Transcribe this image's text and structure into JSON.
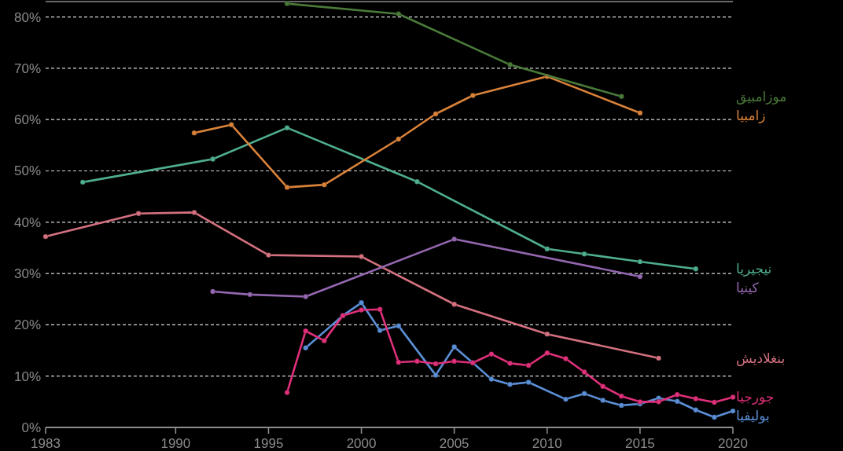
{
  "chart_data": {
    "type": "line",
    "xlim": [
      1983,
      2020
    ],
    "ylim": [
      0,
      83
    ],
    "xticks": [
      1983,
      1990,
      1995,
      2000,
      2005,
      2010,
      2015,
      2020
    ],
    "yticks": [
      {
        "value": 0,
        "label": "0%"
      },
      {
        "value": 10,
        "label": "10%"
      },
      {
        "value": 20,
        "label": "20%"
      },
      {
        "value": 30,
        "label": "30%"
      },
      {
        "value": 40,
        "label": "40%"
      },
      {
        "value": 50,
        "label": "50%"
      },
      {
        "value": 60,
        "label": "60%"
      },
      {
        "value": 70,
        "label": "70%"
      },
      {
        "value": 80,
        "label": "80%"
      }
    ],
    "grid": "y",
    "marker": "circle",
    "line_style": "solid",
    "legend": false,
    "series": [
      {
        "name": "موزامبيق",
        "color": "#4a7a3a",
        "x": [
          1996,
          2002,
          2008,
          2014
        ],
        "values": [
          82.6,
          80.6,
          70.7,
          64.5
        ]
      },
      {
        "name": "زامبيا",
        "color": "#d9823a",
        "x": [
          1991,
          1993,
          1996,
          1998,
          2002,
          2004,
          2006,
          2010,
          2015
        ],
        "values": [
          57.4,
          59.0,
          46.8,
          47.3,
          56.2,
          61.1,
          64.7,
          68.4,
          61.3
        ]
      },
      {
        "name": "نيجيريا",
        "color": "#4fae8f",
        "x": [
          1985,
          1992,
          1996,
          2003,
          2010,
          2012,
          2015,
          2018
        ],
        "values": [
          47.8,
          52.3,
          58.4,
          47.9,
          34.8,
          33.8,
          32.3,
          30.9
        ]
      },
      {
        "name": "كينيا",
        "color": "#9467b0",
        "x": [
          1992,
          1994,
          1997,
          2005,
          2015
        ],
        "values": [
          26.5,
          25.9,
          25.5,
          36.7,
          29.4
        ]
      },
      {
        "name": "بنغلاديش",
        "color": "#d4717f",
        "x": [
          1983,
          1988,
          1991,
          1995,
          2000,
          2005,
          2010,
          2016
        ],
        "values": [
          37.2,
          41.7,
          41.9,
          33.6,
          33.3,
          24.0,
          18.2,
          13.5
        ]
      },
      {
        "name": "جورجيا",
        "color": "#e0307a",
        "x": [
          1996,
          1997,
          1998,
          1999,
          2000,
          2001,
          2002,
          2003,
          2004,
          2005,
          2006,
          2007,
          2008,
          2009,
          2010,
          2011,
          2012,
          2013,
          2014,
          2015,
          2016,
          2017,
          2018,
          2019,
          2020
        ],
        "values": [
          6.8,
          18.8,
          16.9,
          21.8,
          22.9,
          23.0,
          12.7,
          12.9,
          12.4,
          12.9,
          12.6,
          14.3,
          12.5,
          12.1,
          14.5,
          13.4,
          10.8,
          8.0,
          6.1,
          5.0,
          5.0,
          6.4,
          5.6,
          4.9,
          5.9
        ]
      },
      {
        "name": "بوليفيا",
        "color": "#5b8fd6",
        "x": [
          1997,
          1999,
          2000,
          2001,
          2002,
          2004,
          2005,
          2006,
          2007,
          2008,
          2009,
          2011,
          2012,
          2013,
          2014,
          2015,
          2016,
          2017,
          2018,
          2019,
          2020
        ],
        "values": [
          15.5,
          21.8,
          24.3,
          18.9,
          19.8,
          10.2,
          15.7,
          12.6,
          9.4,
          8.4,
          8.8,
          5.5,
          6.6,
          5.3,
          4.3,
          4.6,
          5.7,
          5.1,
          3.4,
          2.0,
          3.2
        ]
      }
    ]
  }
}
